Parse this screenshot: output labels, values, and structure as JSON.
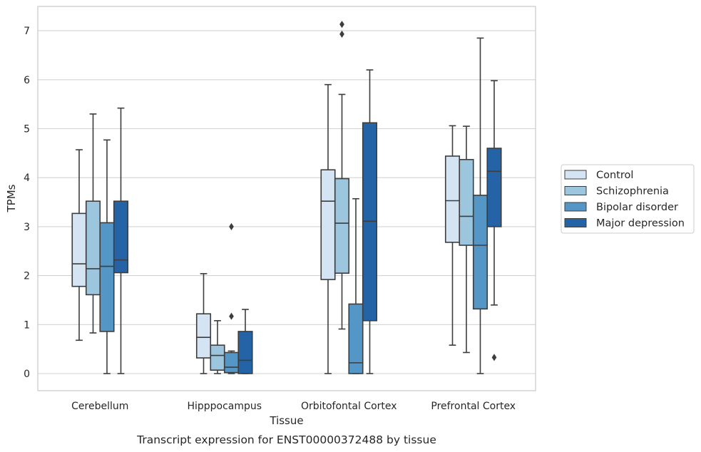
{
  "chart_data": {
    "type": "box",
    "title": "",
    "caption": "Transcript expression for ENST00000372488 by tissue",
    "xlabel": "Tissue",
    "ylabel": "TPMs",
    "ylim": [
      -0.35,
      7.5
    ],
    "yticks": [
      0,
      1,
      2,
      3,
      4,
      5,
      6,
      7
    ],
    "grid": "horizontal",
    "legend_position": "right",
    "categories": [
      "Cerebellum",
      "Hipppocampus",
      "Orbitofontal Cortex",
      "Prefrontal Cortex"
    ],
    "series": [
      {
        "name": "Control",
        "color": "#d4e4f3",
        "boxes": [
          {
            "whislo": 0.68,
            "q1": 1.78,
            "med": 2.24,
            "q3": 3.27,
            "whishi": 4.57,
            "fliers": []
          },
          {
            "whislo": 0.0,
            "q1": 0.32,
            "med": 0.74,
            "q3": 1.22,
            "whishi": 2.04,
            "fliers": []
          },
          {
            "whislo": 0.0,
            "q1": 1.92,
            "med": 3.52,
            "q3": 4.16,
            "whishi": 5.9,
            "fliers": []
          },
          {
            "whislo": 0.58,
            "q1": 2.68,
            "med": 3.53,
            "q3": 4.44,
            "whishi": 5.06,
            "fliers": []
          }
        ]
      },
      {
        "name": "Schizophrenia",
        "color": "#9cc5de",
        "boxes": [
          {
            "whislo": 0.83,
            "q1": 1.61,
            "med": 2.14,
            "q3": 3.52,
            "whishi": 5.3,
            "fliers": []
          },
          {
            "whislo": 0.0,
            "q1": 0.07,
            "med": 0.37,
            "q3": 0.58,
            "whishi": 1.08,
            "fliers": []
          },
          {
            "whislo": 0.91,
            "q1": 2.05,
            "med": 3.07,
            "q3": 3.98,
            "whishi": 5.7,
            "fliers": [
              6.93,
              7.13
            ]
          },
          {
            "whislo": 0.43,
            "q1": 2.62,
            "med": 3.21,
            "q3": 4.37,
            "whishi": 5.05,
            "fliers": []
          }
        ]
      },
      {
        "name": "Bipolar disorder",
        "color": "#5496c5",
        "boxes": [
          {
            "whislo": 0.0,
            "q1": 0.86,
            "med": 2.19,
            "q3": 3.08,
            "whishi": 4.77,
            "fliers": []
          },
          {
            "whislo": 0.0,
            "q1": 0.02,
            "med": 0.13,
            "q3": 0.43,
            "whishi": 0.46,
            "fliers": [
              1.17,
              3.0
            ]
          },
          {
            "whislo": 0.0,
            "q1": 0.0,
            "med": 0.22,
            "q3": 1.42,
            "whishi": 3.57,
            "fliers": []
          },
          {
            "whislo": 0.0,
            "q1": 1.32,
            "med": 2.62,
            "q3": 3.64,
            "whishi": 6.85,
            "fliers": []
          }
        ]
      },
      {
        "name": "Major depression",
        "color": "#2464a6",
        "boxes": [
          {
            "whislo": 0.0,
            "q1": 2.06,
            "med": 2.32,
            "q3": 3.52,
            "whishi": 5.42,
            "fliers": []
          },
          {
            "whislo": 0.0,
            "q1": 0.0,
            "med": 0.27,
            "q3": 0.86,
            "whishi": 1.31,
            "fliers": []
          },
          {
            "whislo": 0.0,
            "q1": 1.08,
            "med": 3.11,
            "q3": 5.12,
            "whishi": 6.2,
            "fliers": []
          },
          {
            "whislo": 1.4,
            "q1": 3.0,
            "med": 4.13,
            "q3": 4.6,
            "whishi": 5.98,
            "fliers": [
              0.33
            ]
          }
        ]
      }
    ]
  }
}
